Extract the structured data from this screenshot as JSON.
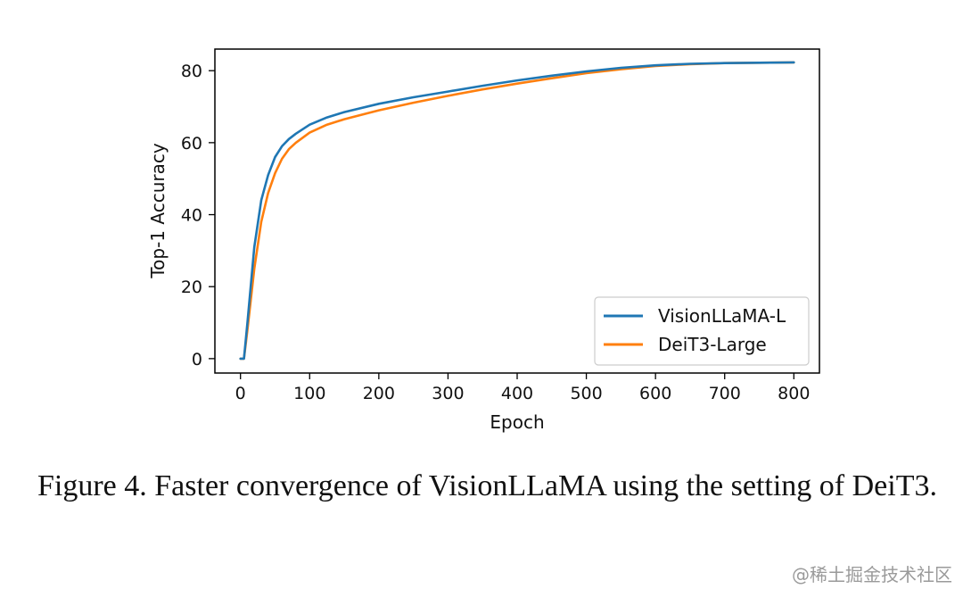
{
  "chart_data": {
    "type": "line",
    "xlabel": "Epoch",
    "ylabel": "Top-1 Accuracy",
    "xlim": [
      -37,
      837
    ],
    "ylim": [
      -4,
      86
    ],
    "xticks": [
      0,
      100,
      200,
      300,
      400,
      500,
      600,
      700,
      800
    ],
    "yticks": [
      0,
      20,
      40,
      60,
      80
    ],
    "grid": false,
    "legend_position": "bottom-right",
    "series": [
      {
        "name": "VisionLLaMA-L",
        "color": "#1f77b4",
        "x": [
          0,
          5,
          10,
          20,
          30,
          40,
          50,
          60,
          70,
          80,
          100,
          125,
          150,
          200,
          250,
          300,
          350,
          400,
          450,
          500,
          550,
          600,
          650,
          700,
          750,
          800
        ],
        "y": [
          0,
          0,
          10,
          31,
          44,
          51,
          56,
          59,
          61,
          62.5,
          65,
          67,
          68.5,
          70.8,
          72.6,
          74.2,
          75.8,
          77.3,
          78.6,
          79.8,
          80.8,
          81.5,
          81.9,
          82.1,
          82.2,
          82.3
        ]
      },
      {
        "name": "DeiT3-Large",
        "color": "#ff7f0e",
        "x": [
          0,
          5,
          10,
          20,
          30,
          40,
          50,
          60,
          70,
          80,
          100,
          125,
          150,
          200,
          250,
          300,
          350,
          400,
          450,
          500,
          550,
          600,
          650,
          700,
          750,
          800
        ],
        "y": [
          0,
          0,
          8,
          25,
          38,
          46,
          51.5,
          55.5,
          58.2,
          60,
          62.8,
          65,
          66.5,
          69,
          71.1,
          73,
          74.8,
          76.4,
          77.9,
          79.3,
          80.4,
          81.3,
          81.8,
          82.1,
          82.2,
          82.3
        ]
      }
    ]
  },
  "caption": "Figure 4.  Faster convergence of VisionLLaMA using the setting of DeiT3.",
  "watermark": "@稀土掘金技术社区"
}
